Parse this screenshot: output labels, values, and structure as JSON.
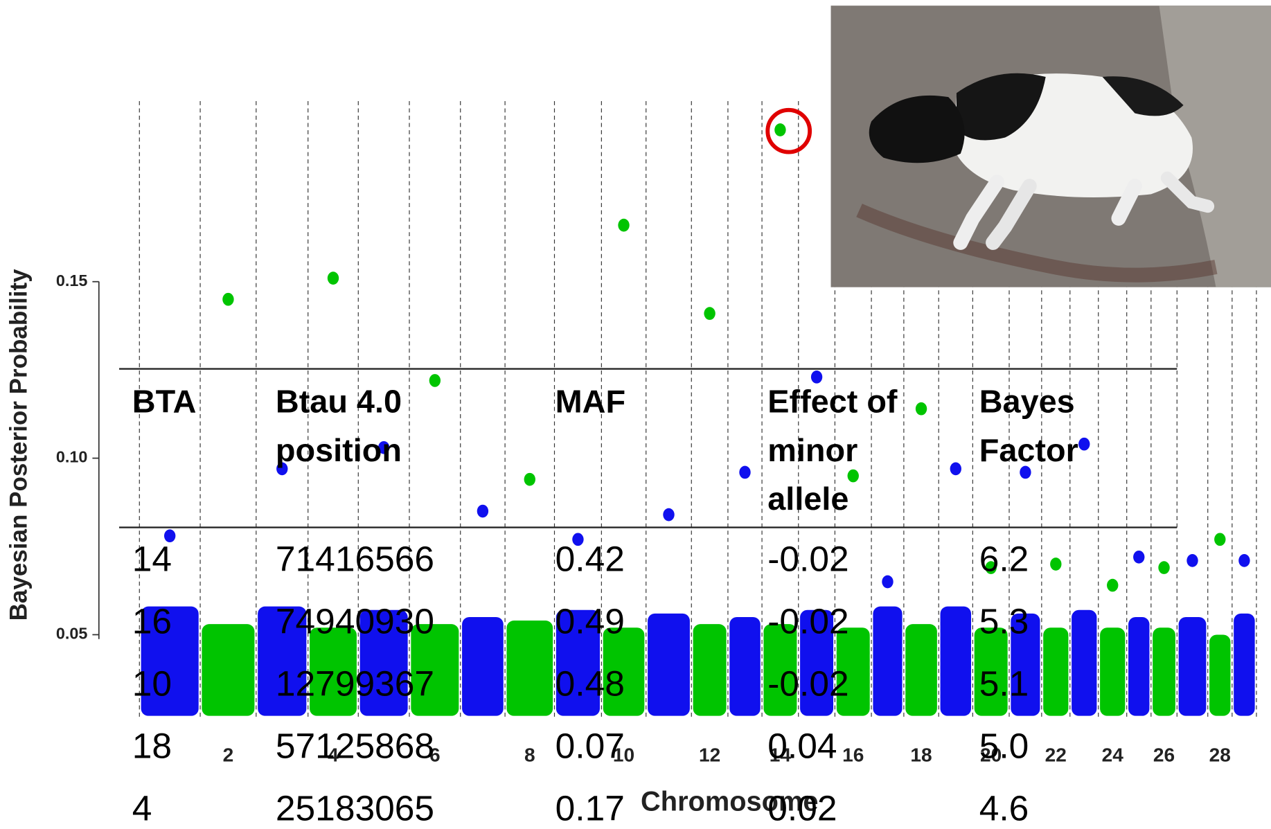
{
  "chart_data": {
    "type": "scatter",
    "x_label": "Chromosome",
    "y_label": "Bayesian Posterior Probability",
    "categories": [
      null,
      "2",
      null,
      "4",
      null,
      "6",
      null,
      "8",
      null,
      "10",
      null,
      "12",
      null,
      "14",
      null,
      "16",
      null,
      "18",
      null,
      "20",
      null,
      "22",
      null,
      "24",
      null,
      "26",
      null,
      "28",
      null
    ],
    "colors": [
      "#1010ee",
      "#00c400"
    ],
    "series": [
      {
        "values": [
          0.078,
          0.145,
          0.097,
          0.151,
          0.103,
          0.122,
          0.085,
          0.094,
          0.077,
          0.166,
          0.084,
          0.141,
          0.096,
          0.193,
          0.123,
          0.095,
          0.065,
          0.114,
          0.097,
          0.069,
          0.096,
          0.07,
          0.104,
          0.064,
          0.072,
          0.069,
          0.071,
          0.077,
          0.071
        ]
      },
      {
        "values": [
          0.058,
          0.053,
          0.058,
          0.052,
          0.057,
          0.053,
          0.055,
          0.054,
          0.057,
          0.052,
          0.056,
          0.053,
          0.055,
          0.053,
          0.057,
          0.052,
          0.058,
          0.053,
          0.058,
          0.052,
          0.056,
          0.052,
          0.057,
          0.052,
          0.055,
          0.052,
          0.055,
          0.05,
          0.056
        ]
      }
    ],
    "ylim": [
      0.027,
      0.2
    ],
    "yticks": [
      0.05,
      {
        "value": 0.1,
        "label": "0.10"
      },
      0.15
    ],
    "grid": true
  },
  "table": {
    "header": [
      "BTA",
      "Btau 4.0 position",
      "MAF",
      "Effect of minor allele",
      "Bayes Factor"
    ],
    "rows": [
      [
        "14",
        "71416566",
        "0.42",
        "-0.02",
        "6.2"
      ],
      [
        "16",
        "74940930",
        "0.49",
        "-0.02",
        "5.3"
      ],
      [
        "10",
        "12799367",
        "0.48",
        "-0.02",
        "5.1"
      ],
      [
        "18",
        "57125868",
        "0.07",
        "0.04",
        "5.0"
      ],
      [
        "4",
        "25183065",
        "0.17",
        "0.02",
        "4.6"
      ]
    ]
  }
}
